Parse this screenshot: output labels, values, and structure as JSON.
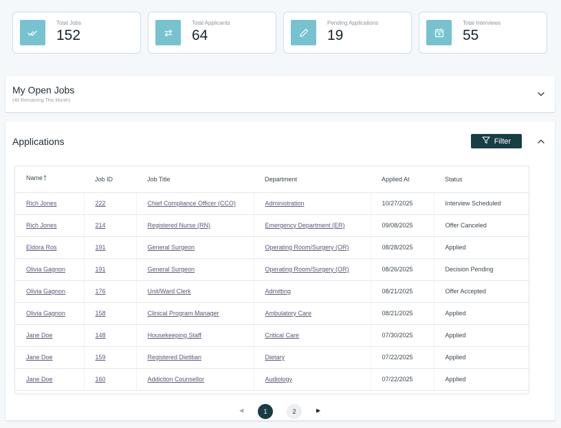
{
  "stats": [
    {
      "label": "Total Jobs",
      "value": "152",
      "icon": "double-check-icon"
    },
    {
      "label": "Total Applicants",
      "value": "64",
      "icon": "swap-arrows-icon"
    },
    {
      "label": "Pending Applications",
      "value": "19",
      "icon": "pencil-icon"
    },
    {
      "label": "Total Interviews",
      "value": "55",
      "icon": "calendar-icon"
    }
  ],
  "open_jobs": {
    "title": "My Open Jobs",
    "subtitle": "(40 Remaining This Month)"
  },
  "applications": {
    "title": "Applications",
    "filter_label": "Filter",
    "columns": [
      "Name",
      "Job ID",
      "Job Title",
      "Department",
      "Applied At",
      "Status"
    ],
    "rows": [
      {
        "name": "Rich Jones",
        "job_id": "222",
        "job_title": "Chief Compliance Officer (CCO)",
        "department": "Administration",
        "applied_at": "10/27/2025",
        "status": "Interview Scheduled"
      },
      {
        "name": "Rich Jones",
        "job_id": "214",
        "job_title": "Registered Nurse (RN)",
        "department": "Emergency Department (ER)",
        "applied_at": "09/08/2025",
        "status": "Offer Canceled"
      },
      {
        "name": "Eldora Ros",
        "job_id": "191",
        "job_title": "General Surgeon",
        "department": "Operating Room/Surgery (OR)",
        "applied_at": "08/28/2025",
        "status": "Applied"
      },
      {
        "name": "Olivia Gagnon",
        "job_id": "191",
        "job_title": "General Surgeon",
        "department": "Operating Room/Surgery (OR)",
        "applied_at": "08/26/2025",
        "status": "Decision Pending"
      },
      {
        "name": "Olivia Gagnon",
        "job_id": "176",
        "job_title": "Unit/Ward Clerk",
        "department": "Admitting",
        "applied_at": "08/21/2025",
        "status": "Offer Accepted"
      },
      {
        "name": "Olivia Gagnon",
        "job_id": "158",
        "job_title": "Clinical Program Manager",
        "department": "Ambulatory Care",
        "applied_at": "08/21/2025",
        "status": "Applied"
      },
      {
        "name": "Jane Doe",
        "job_id": "148",
        "job_title": "Housekeeping Staff",
        "department": "Critical Care",
        "applied_at": "07/30/2025",
        "status": "Applied"
      },
      {
        "name": "Jane Doe",
        "job_id": "159",
        "job_title": "Registered Dietitian",
        "department": "Dietary",
        "applied_at": "07/22/2025",
        "status": "Applied"
      },
      {
        "name": "Jane Doe",
        "job_id": "160",
        "job_title": "Addiction Counsellor",
        "department": "Audiology",
        "applied_at": "07/22/2025",
        "status": "Applied"
      }
    ]
  },
  "pagination": {
    "pages": [
      "1",
      "2"
    ],
    "current": "1"
  },
  "colors": {
    "accent": "#163e44",
    "icon_bg": "#76c3cf",
    "link": "#5a5877"
  }
}
